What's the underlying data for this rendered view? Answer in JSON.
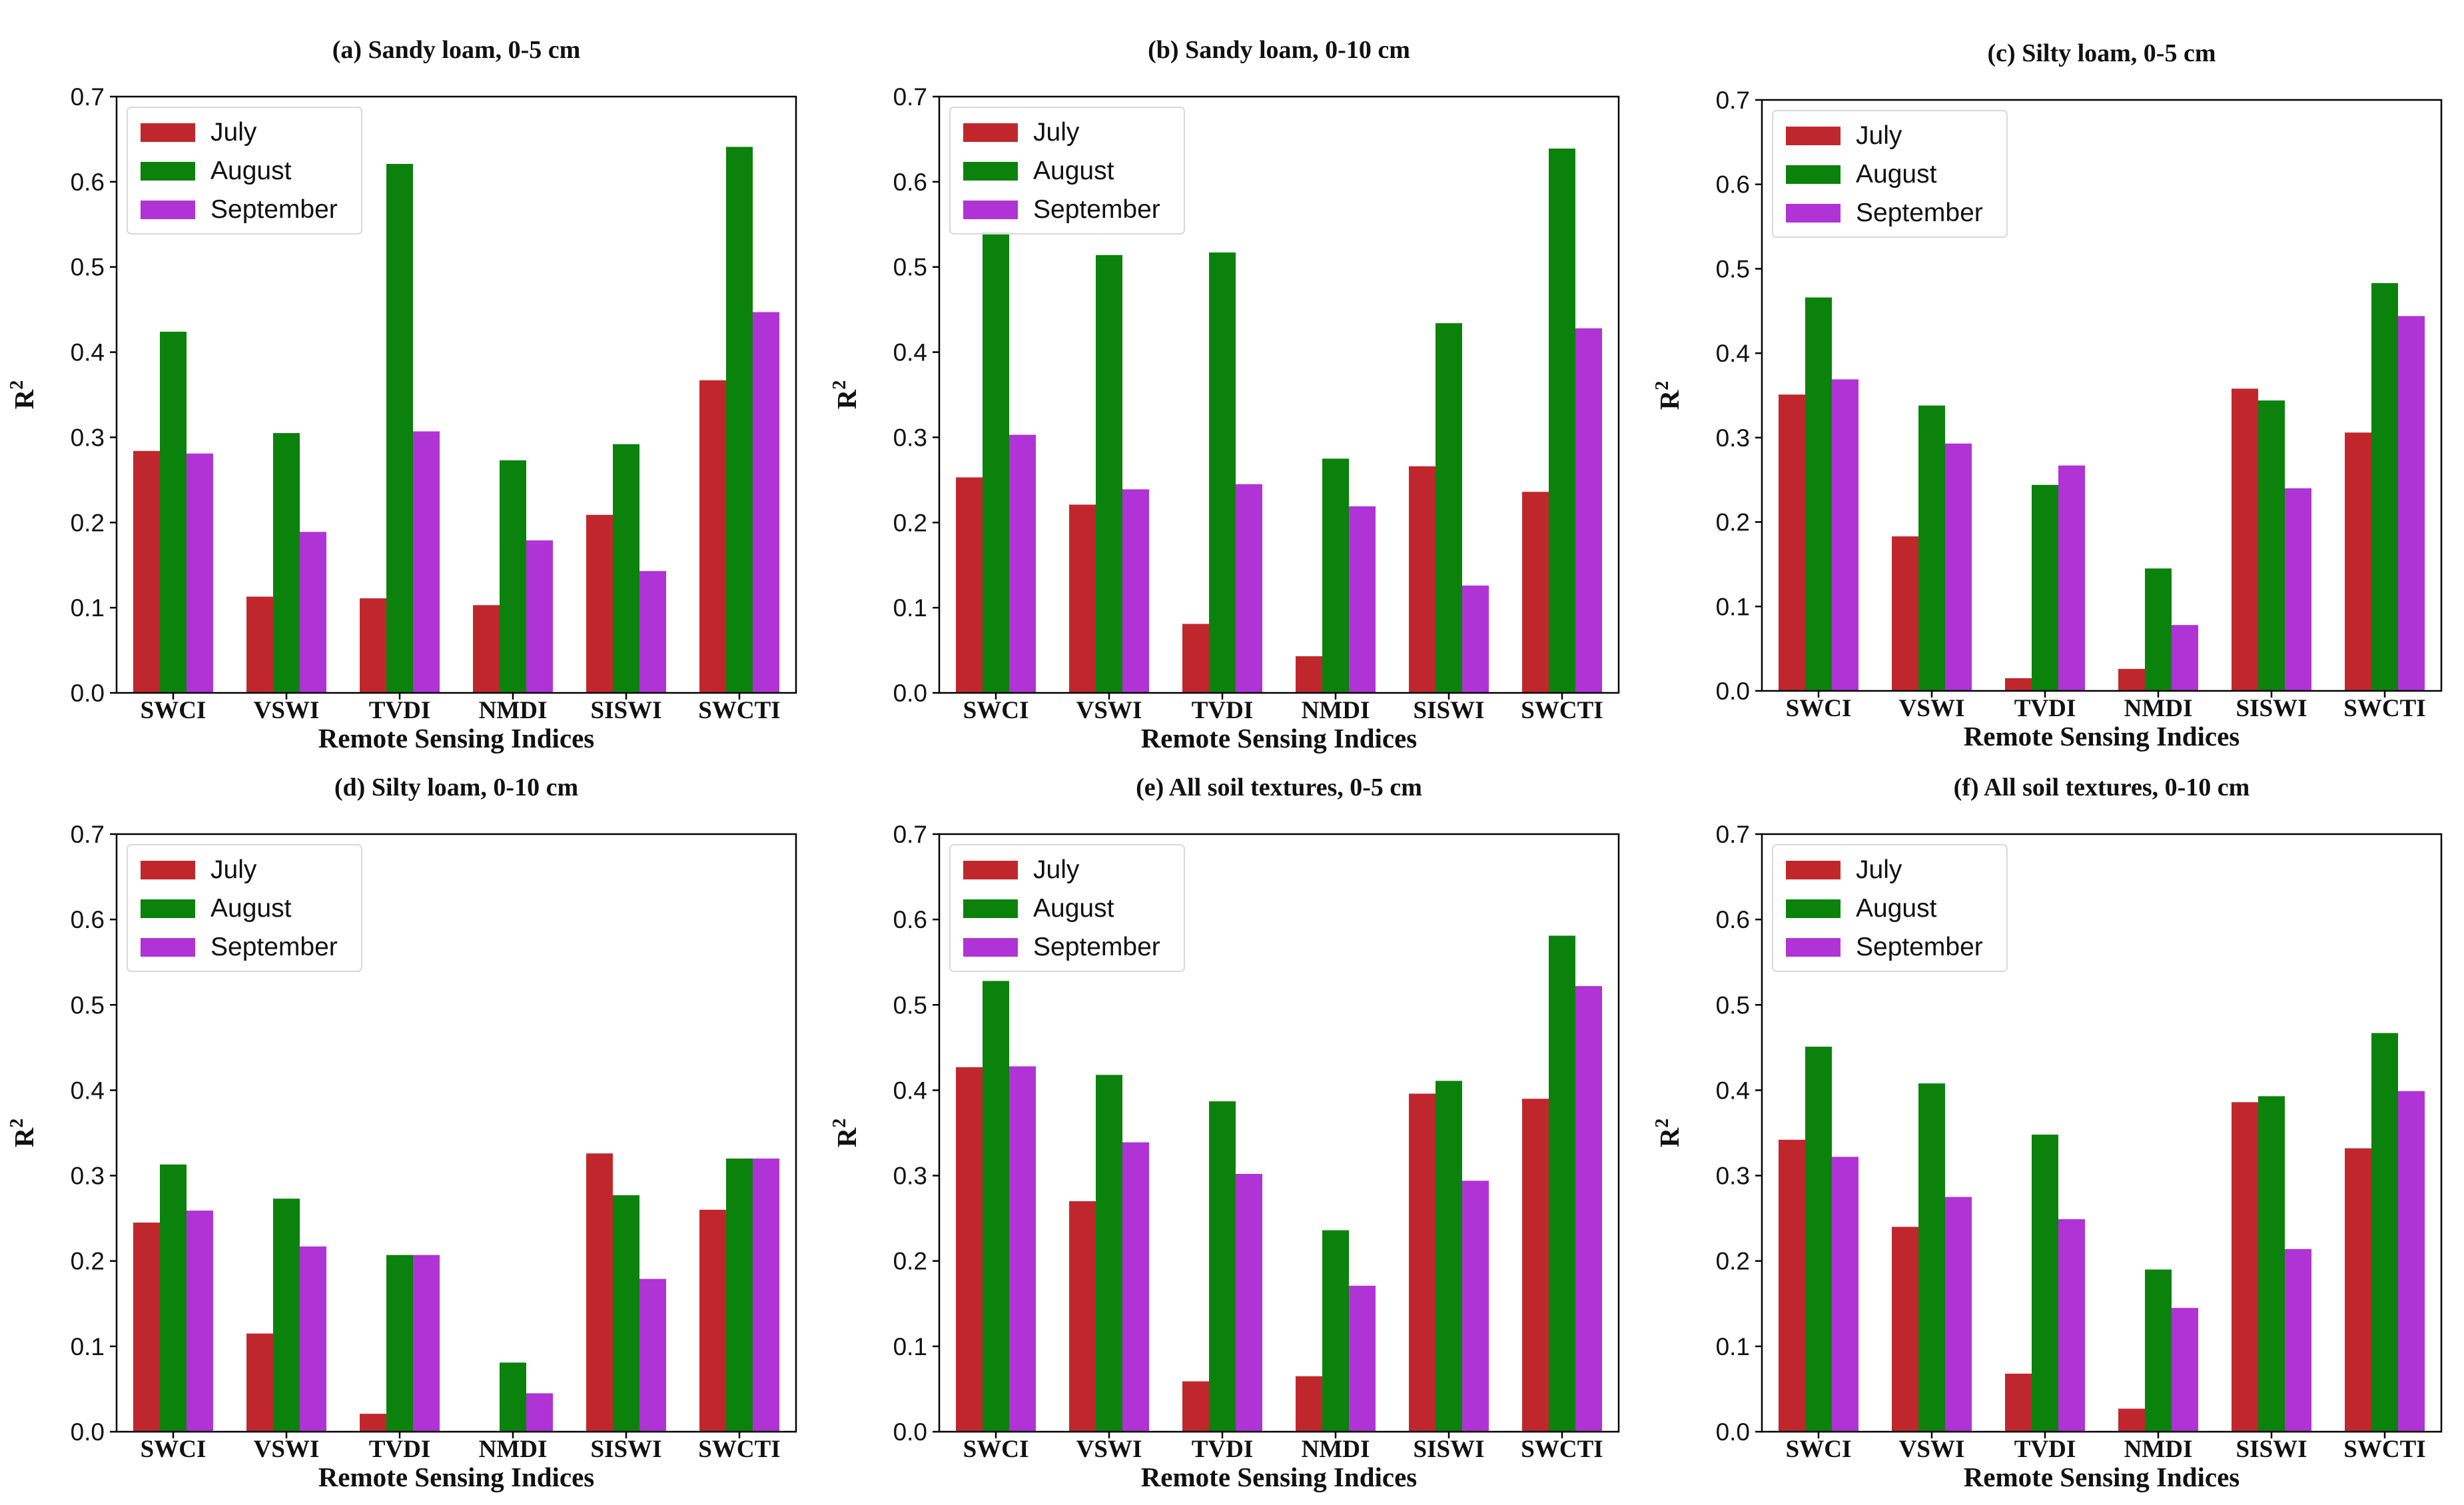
{
  "colors": {
    "July": "#c0272d",
    "August": "#0b820b",
    "September": "#b033d6"
  },
  "chart_data": [
    {
      "type": "bar",
      "title": "(a) Sandy loam, 0-5 cm",
      "xlabel": "Remote Sensing Indices",
      "ylabel": "R",
      "ylabel_sup": "2",
      "ylim": [
        0,
        0.7
      ],
      "yticks": [
        "0.0",
        "0.1",
        "0.2",
        "0.3",
        "0.4",
        "0.5",
        "0.6",
        "0.7"
      ],
      "categories": [
        "SWCI",
        "VSWI",
        "TVDI",
        "NMDI",
        "SISWI",
        "SWCTI"
      ],
      "legend_position": "upper-left",
      "series": [
        {
          "name": "July",
          "values": [
            0.284,
            0.113,
            0.111,
            0.103,
            0.209,
            0.367
          ]
        },
        {
          "name": "August",
          "values": [
            0.424,
            0.305,
            0.621,
            0.273,
            0.292,
            0.641
          ]
        },
        {
          "name": "September",
          "values": [
            0.281,
            0.189,
            0.307,
            0.179,
            0.143,
            0.447
          ]
        }
      ]
    },
    {
      "type": "bar",
      "title": "(b) Sandy loam, 0-10 cm",
      "xlabel": "Remote Sensing Indices",
      "ylabel": "R",
      "ylabel_sup": "2",
      "ylim": [
        0,
        0.7
      ],
      "yticks": [
        "0.0",
        "0.1",
        "0.2",
        "0.3",
        "0.4",
        "0.5",
        "0.6",
        "0.7"
      ],
      "categories": [
        "SWCI",
        "VSWI",
        "TVDI",
        "NMDI",
        "SISWI",
        "SWCTI"
      ],
      "legend_position": "upper-left",
      "series": [
        {
          "name": "July",
          "values": [
            0.253,
            0.221,
            0.081,
            0.043,
            0.266,
            0.236
          ]
        },
        {
          "name": "August",
          "values": [
            0.541,
            0.514,
            0.517,
            0.275,
            0.434,
            0.639
          ]
        },
        {
          "name": "September",
          "values": [
            0.303,
            0.239,
            0.245,
            0.219,
            0.126,
            0.428
          ]
        }
      ]
    },
    {
      "type": "bar",
      "title": "(c) Silty loam, 0-5 cm",
      "xlabel": "Remote Sensing Indices",
      "ylabel": "R",
      "ylabel_sup": "2",
      "ylim": [
        0,
        0.7
      ],
      "yticks": [
        "0.0",
        "0.1",
        "0.2",
        "0.3",
        "0.4",
        "0.5",
        "0.6",
        "0.7"
      ],
      "categories": [
        "SWCI",
        "VSWI",
        "TVDI",
        "NMDI",
        "SISWI",
        "SWCTI"
      ],
      "legend_position": "upper-left",
      "series": [
        {
          "name": "July",
          "values": [
            0.351,
            0.183,
            0.015,
            0.026,
            0.358,
            0.306
          ]
        },
        {
          "name": "August",
          "values": [
            0.466,
            0.338,
            0.244,
            0.145,
            0.344,
            0.483
          ]
        },
        {
          "name": "September",
          "values": [
            0.369,
            0.293,
            0.267,
            0.078,
            0.24,
            0.444
          ]
        }
      ]
    },
    {
      "type": "bar",
      "title": "(d) Silty loam, 0-10 cm",
      "xlabel": "Remote Sensing Indices",
      "ylabel": "R",
      "ylabel_sup": "2",
      "ylim": [
        0,
        0.7
      ],
      "yticks": [
        "0.0",
        "0.1",
        "0.2",
        "0.3",
        "0.4",
        "0.5",
        "0.6",
        "0.7"
      ],
      "categories": [
        "SWCI",
        "VSWI",
        "TVDI",
        "NMDI",
        "SISWI",
        "SWCTI"
      ],
      "legend_position": "upper-left",
      "series": [
        {
          "name": "July",
          "values": [
            0.245,
            0.115,
            0.021,
            0.0,
            0.326,
            0.26
          ]
        },
        {
          "name": "August",
          "values": [
            0.313,
            0.273,
            0.207,
            0.081,
            0.277,
            0.32
          ]
        },
        {
          "name": "September",
          "values": [
            0.259,
            0.217,
            0.207,
            0.045,
            0.179,
            0.32
          ]
        }
      ]
    },
    {
      "type": "bar",
      "title": "(e) All soil textures, 0-5 cm",
      "xlabel": "Remote Sensing Indices",
      "ylabel": "R",
      "ylabel_sup": "2",
      "ylim": [
        0,
        0.7
      ],
      "yticks": [
        "0.0",
        "0.1",
        "0.2",
        "0.3",
        "0.4",
        "0.5",
        "0.6",
        "0.7"
      ],
      "categories": [
        "SWCI",
        "VSWI",
        "TVDI",
        "NMDI",
        "SISWI",
        "SWCTI"
      ],
      "legend_position": "upper-left",
      "series": [
        {
          "name": "July",
          "values": [
            0.427,
            0.27,
            0.059,
            0.065,
            0.396,
            0.39
          ]
        },
        {
          "name": "August",
          "values": [
            0.528,
            0.418,
            0.387,
            0.236,
            0.411,
            0.581
          ]
        },
        {
          "name": "September",
          "values": [
            0.428,
            0.339,
            0.302,
            0.171,
            0.294,
            0.522
          ]
        }
      ]
    },
    {
      "type": "bar",
      "title": "(f) All soil textures, 0-10 cm",
      "xlabel": "Remote Sensing Indices",
      "ylabel": "R",
      "ylabel_sup": "2",
      "ylim": [
        0,
        0.7
      ],
      "yticks": [
        "0.0",
        "0.1",
        "0.2",
        "0.3",
        "0.4",
        "0.5",
        "0.6",
        "0.7"
      ],
      "categories": [
        "SWCI",
        "VSWI",
        "TVDI",
        "NMDI",
        "SISWI",
        "SWCTI"
      ],
      "legend_position": "upper-left",
      "series": [
        {
          "name": "July",
          "values": [
            0.342,
            0.24,
            0.068,
            0.027,
            0.386,
            0.332
          ]
        },
        {
          "name": "August",
          "values": [
            0.451,
            0.408,
            0.348,
            0.19,
            0.393,
            0.467
          ]
        },
        {
          "name": "September",
          "values": [
            0.322,
            0.275,
            0.249,
            0.145,
            0.214,
            0.399
          ]
        }
      ]
    }
  ]
}
